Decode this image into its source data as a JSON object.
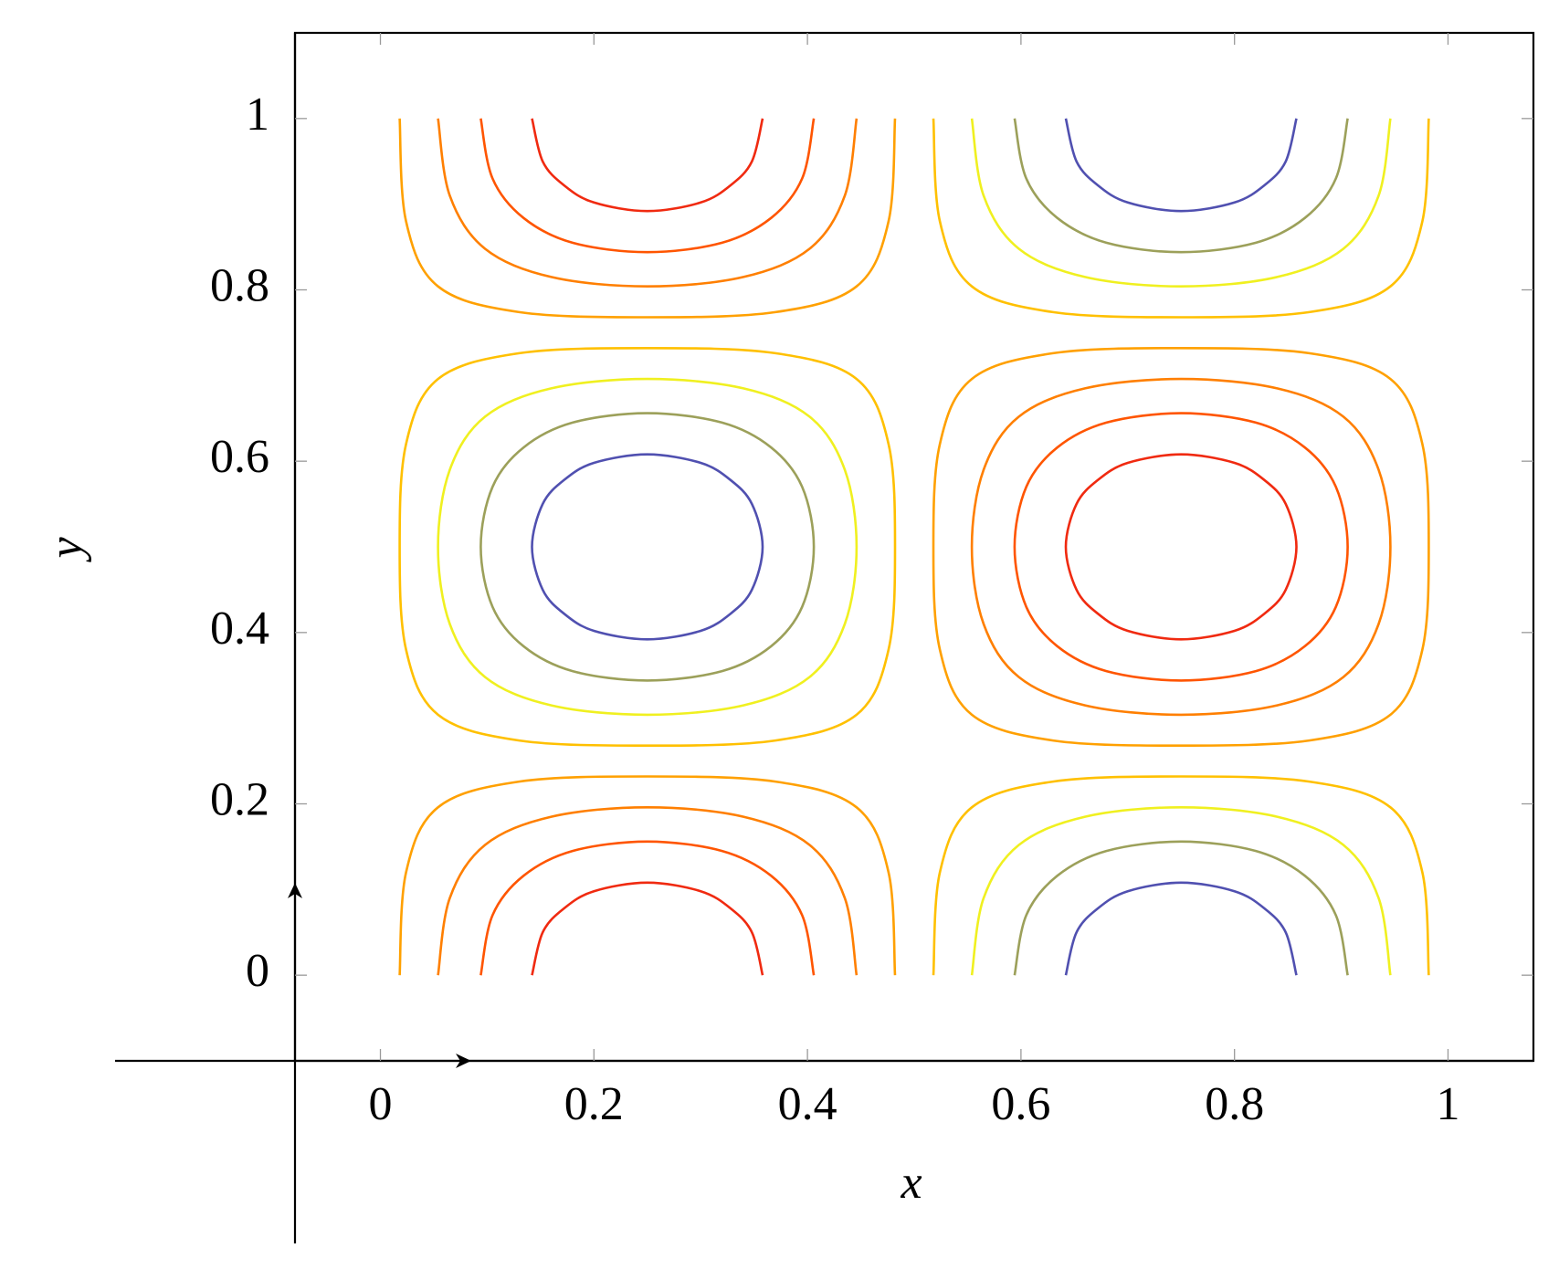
{
  "chart_data": {
    "type": "contour",
    "xlabel": "x",
    "ylabel": "y",
    "xlim": [
      -0.08,
      1.08
    ],
    "ylim": [
      -0.1,
      1.1
    ],
    "xticks": [
      0,
      0.2,
      0.4,
      0.6,
      0.8,
      1
    ],
    "yticks": [
      0,
      0.2,
      0.4,
      0.6,
      0.8,
      1
    ],
    "series": [
      {
        "color": "#f02a10",
        "x": [
          0.142,
          0.152,
          0.172,
          0.2,
          0.25,
          0.3,
          0.328,
          0.348,
          0.358
        ],
        "values": [
          0,
          0.05,
          0.078,
          0.098,
          0.108,
          0.098,
          0.078,
          0.05,
          0
        ]
      },
      {
        "color": "#ff5500",
        "x": [
          0.094,
          0.105,
          0.134,
          0.18,
          0.25,
          0.32,
          0.366,
          0.395,
          0.406
        ],
        "values": [
          0,
          0.07,
          0.116,
          0.145,
          0.156,
          0.145,
          0.116,
          0.07,
          0
        ]
      },
      {
        "color": "#ff7f00",
        "x": [
          0.054,
          0.065,
          0.098,
          0.16,
          0.25,
          0.34,
          0.402,
          0.435,
          0.446
        ],
        "values": [
          0,
          0.09,
          0.152,
          0.185,
          0.196,
          0.185,
          0.152,
          0.09,
          0
        ]
      },
      {
        "color": "#ffa000",
        "x": [
          0.018,
          0.024,
          0.054,
          0.13,
          0.25,
          0.37,
          0.446,
          0.476,
          0.482
        ],
        "values": [
          0,
          0.12,
          0.196,
          0.226,
          0.232,
          0.226,
          0.196,
          0.12,
          0
        ]
      },
      {
        "color": "#5050b0",
        "x": [
          0.642,
          0.652,
          0.672,
          0.7,
          0.75,
          0.8,
          0.828,
          0.848,
          0.858
        ],
        "values": [
          0,
          0.05,
          0.078,
          0.098,
          0.108,
          0.098,
          0.078,
          0.05,
          0
        ]
      },
      {
        "color": "#9ca05a",
        "x": [
          0.594,
          0.605,
          0.634,
          0.68,
          0.75,
          0.82,
          0.866,
          0.895,
          0.906
        ],
        "values": [
          0,
          0.07,
          0.116,
          0.145,
          0.156,
          0.145,
          0.116,
          0.07,
          0
        ]
      },
      {
        "color": "#f0f020",
        "x": [
          0.554,
          0.565,
          0.598,
          0.66,
          0.75,
          0.84,
          0.902,
          0.935,
          0.946
        ],
        "values": [
          0,
          0.09,
          0.152,
          0.185,
          0.196,
          0.185,
          0.152,
          0.09,
          0
        ]
      },
      {
        "color": "#ffc000",
        "x": [
          0.518,
          0.524,
          0.554,
          0.63,
          0.75,
          0.87,
          0.946,
          0.976,
          0.982
        ],
        "values": [
          0,
          0.12,
          0.196,
          0.226,
          0.232,
          0.226,
          0.196,
          0.12,
          0
        ]
      },
      {
        "color": "#5050b0",
        "x": [
          0.358,
          0.348,
          0.328,
          0.3,
          0.25,
          0.2,
          0.172,
          0.152,
          0.142,
          0.152,
          0.172,
          0.2,
          0.25,
          0.3,
          0.328,
          0.348,
          0.358
        ],
        "values": [
          0.5,
          0.55,
          0.578,
          0.598,
          0.608,
          0.598,
          0.578,
          0.55,
          0.5,
          0.45,
          0.422,
          0.402,
          0.392,
          0.402,
          0.422,
          0.45,
          0.5
        ]
      },
      {
        "color": "#9ca05a",
        "x": [
          0.406,
          0.395,
          0.366,
          0.32,
          0.25,
          0.18,
          0.134,
          0.105,
          0.094,
          0.105,
          0.134,
          0.18,
          0.25,
          0.32,
          0.366,
          0.395,
          0.406
        ],
        "values": [
          0.5,
          0.57,
          0.616,
          0.645,
          0.656,
          0.645,
          0.616,
          0.57,
          0.5,
          0.43,
          0.384,
          0.355,
          0.344,
          0.355,
          0.384,
          0.43,
          0.5
        ]
      },
      {
        "color": "#f0f020",
        "x": [
          0.446,
          0.435,
          0.402,
          0.34,
          0.25,
          0.16,
          0.098,
          0.065,
          0.054,
          0.065,
          0.098,
          0.16,
          0.25,
          0.34,
          0.402,
          0.435,
          0.446
        ],
        "values": [
          0.5,
          0.59,
          0.652,
          0.685,
          0.696,
          0.685,
          0.652,
          0.59,
          0.5,
          0.41,
          0.348,
          0.315,
          0.304,
          0.315,
          0.348,
          0.41,
          0.5
        ]
      },
      {
        "color": "#ffc000",
        "x": [
          0.482,
          0.476,
          0.446,
          0.37,
          0.25,
          0.13,
          0.054,
          0.024,
          0.018,
          0.024,
          0.054,
          0.13,
          0.25,
          0.37,
          0.446,
          0.476,
          0.482
        ],
        "values": [
          0.5,
          0.62,
          0.696,
          0.726,
          0.732,
          0.726,
          0.696,
          0.62,
          0.5,
          0.38,
          0.304,
          0.274,
          0.268,
          0.274,
          0.304,
          0.38,
          0.5
        ]
      },
      {
        "color": "#f02a10",
        "x": [
          0.858,
          0.848,
          0.828,
          0.8,
          0.75,
          0.7,
          0.672,
          0.652,
          0.642,
          0.652,
          0.672,
          0.7,
          0.75,
          0.8,
          0.828,
          0.848,
          0.858
        ],
        "values": [
          0.5,
          0.55,
          0.578,
          0.598,
          0.608,
          0.598,
          0.578,
          0.55,
          0.5,
          0.45,
          0.422,
          0.402,
          0.392,
          0.402,
          0.422,
          0.45,
          0.5
        ]
      },
      {
        "color": "#ff5500",
        "x": [
          0.906,
          0.895,
          0.866,
          0.82,
          0.75,
          0.68,
          0.634,
          0.605,
          0.594,
          0.605,
          0.634,
          0.68,
          0.75,
          0.82,
          0.866,
          0.895,
          0.906
        ],
        "values": [
          0.5,
          0.57,
          0.616,
          0.645,
          0.656,
          0.645,
          0.616,
          0.57,
          0.5,
          0.43,
          0.384,
          0.355,
          0.344,
          0.355,
          0.384,
          0.43,
          0.5
        ]
      },
      {
        "color": "#ff7f00",
        "x": [
          0.946,
          0.935,
          0.902,
          0.84,
          0.75,
          0.66,
          0.598,
          0.565,
          0.554,
          0.565,
          0.598,
          0.66,
          0.75,
          0.84,
          0.902,
          0.935,
          0.946
        ],
        "values": [
          0.5,
          0.59,
          0.652,
          0.685,
          0.696,
          0.685,
          0.652,
          0.59,
          0.5,
          0.41,
          0.348,
          0.315,
          0.304,
          0.315,
          0.348,
          0.41,
          0.5
        ]
      },
      {
        "color": "#ffa000",
        "x": [
          0.982,
          0.976,
          0.946,
          0.87,
          0.75,
          0.63,
          0.554,
          0.524,
          0.518,
          0.524,
          0.554,
          0.63,
          0.75,
          0.87,
          0.946,
          0.976,
          0.982
        ],
        "values": [
          0.5,
          0.62,
          0.696,
          0.726,
          0.732,
          0.726,
          0.696,
          0.62,
          0.5,
          0.38,
          0.304,
          0.274,
          0.268,
          0.274,
          0.304,
          0.38,
          0.5
        ]
      },
      {
        "color": "#f02a10",
        "x": [
          0.142,
          0.152,
          0.172,
          0.2,
          0.25,
          0.3,
          0.328,
          0.348,
          0.358
        ],
        "values": [
          1,
          0.95,
          0.922,
          0.902,
          0.892,
          0.902,
          0.922,
          0.95,
          1
        ]
      },
      {
        "color": "#ff5500",
        "x": [
          0.094,
          0.105,
          0.134,
          0.18,
          0.25,
          0.32,
          0.366,
          0.395,
          0.406
        ],
        "values": [
          1,
          0.93,
          0.884,
          0.855,
          0.844,
          0.855,
          0.884,
          0.93,
          1
        ]
      },
      {
        "color": "#ff7f00",
        "x": [
          0.054,
          0.065,
          0.098,
          0.16,
          0.25,
          0.34,
          0.402,
          0.435,
          0.446
        ],
        "values": [
          1,
          0.91,
          0.848,
          0.815,
          0.804,
          0.815,
          0.848,
          0.91,
          1
        ]
      },
      {
        "color": "#ffa000",
        "x": [
          0.018,
          0.024,
          0.054,
          0.13,
          0.25,
          0.37,
          0.446,
          0.476,
          0.482
        ],
        "values": [
          1,
          0.88,
          0.804,
          0.774,
          0.768,
          0.774,
          0.804,
          0.88,
          1
        ]
      },
      {
        "color": "#5050b0",
        "x": [
          0.642,
          0.652,
          0.672,
          0.7,
          0.75,
          0.8,
          0.828,
          0.848,
          0.858
        ],
        "values": [
          1,
          0.95,
          0.922,
          0.902,
          0.892,
          0.902,
          0.922,
          0.95,
          1
        ]
      },
      {
        "color": "#9ca05a",
        "x": [
          0.594,
          0.605,
          0.634,
          0.68,
          0.75,
          0.82,
          0.866,
          0.895,
          0.906
        ],
        "values": [
          1,
          0.93,
          0.884,
          0.855,
          0.844,
          0.855,
          0.884,
          0.93,
          1
        ]
      },
      {
        "color": "#f0f020",
        "x": [
          0.554,
          0.565,
          0.598,
          0.66,
          0.75,
          0.84,
          0.902,
          0.935,
          0.946
        ],
        "values": [
          1,
          0.91,
          0.848,
          0.815,
          0.804,
          0.815,
          0.848,
          0.91,
          1
        ]
      },
      {
        "color": "#ffc000",
        "x": [
          0.518,
          0.524,
          0.554,
          0.63,
          0.75,
          0.87,
          0.946,
          0.976,
          0.982
        ],
        "values": [
          1,
          0.88,
          0.804,
          0.774,
          0.768,
          0.774,
          0.804,
          0.88,
          1
        ]
      }
    ]
  }
}
